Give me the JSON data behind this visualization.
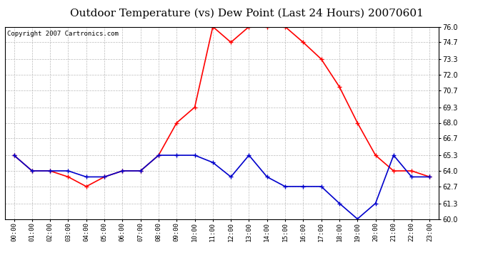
{
  "title": "Outdoor Temperature (vs) Dew Point (Last 24 Hours) 20070601",
  "copyright": "Copyright 2007 Cartronics.com",
  "hours": [
    "00:00",
    "01:00",
    "02:00",
    "03:00",
    "04:00",
    "05:00",
    "06:00",
    "07:00",
    "08:00",
    "09:00",
    "10:00",
    "11:00",
    "12:00",
    "13:00",
    "14:00",
    "15:00",
    "16:00",
    "17:00",
    "18:00",
    "19:00",
    "20:00",
    "21:00",
    "22:00",
    "23:00"
  ],
  "temp": [
    65.3,
    64.0,
    64.0,
    63.5,
    62.7,
    63.5,
    64.0,
    64.0,
    65.3,
    68.0,
    69.3,
    76.0,
    74.7,
    76.0,
    76.0,
    76.0,
    74.7,
    73.3,
    71.0,
    68.0,
    65.3,
    64.0,
    64.0,
    63.5
  ],
  "dew": [
    65.3,
    64.0,
    64.0,
    64.0,
    63.5,
    63.5,
    64.0,
    64.0,
    65.3,
    65.3,
    65.3,
    64.7,
    63.5,
    65.3,
    63.5,
    62.7,
    62.7,
    62.7,
    61.3,
    60.0,
    61.3,
    65.3,
    63.5,
    63.5
  ],
  "temp_color": "#ff0000",
  "dew_color": "#0000cc",
  "bg_color": "#ffffff",
  "plot_bg": "#ffffff",
  "grid_color": "#bbbbbb",
  "ylim": [
    60.0,
    76.0
  ],
  "yticks": [
    60.0,
    61.3,
    62.7,
    64.0,
    65.3,
    66.7,
    68.0,
    69.3,
    70.7,
    72.0,
    73.3,
    74.7,
    76.0
  ],
  "title_fontsize": 11,
  "copyright_fontsize": 6.5,
  "marker": "+",
  "marker_size": 5,
  "linewidth": 1.2
}
